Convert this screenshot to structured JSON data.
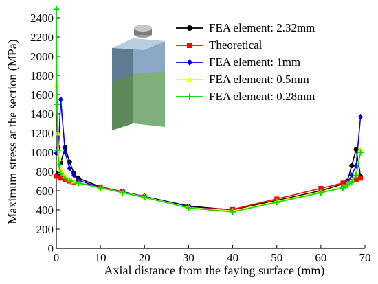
{
  "chart_data": {
    "type": "line",
    "title": "",
    "xlabel": "Axial distance from the faying surface (mm)",
    "ylabel": "Maximum stress at the section (MPa)",
    "xlim": [
      0,
      70
    ],
    "ylim": [
      0,
      2500
    ],
    "xticks": [
      0,
      10,
      20,
      30,
      40,
      50,
      60,
      70
    ],
    "yticks": [
      0,
      200,
      400,
      600,
      800,
      1000,
      1200,
      1400,
      1600,
      1800,
      2000,
      2200,
      2400
    ],
    "grid": false,
    "legend_position": "top-right",
    "series": [
      {
        "name": "FEA element: 2.32mm",
        "color": "#000000",
        "marker": "circle",
        "x": [
          0,
          0.5,
          1,
          2,
          3,
          4,
          5,
          10,
          15,
          20,
          30,
          40,
          50,
          60,
          65,
          66,
          67,
          68,
          69
        ],
        "y": [
          760,
          780,
          890,
          1050,
          900,
          780,
          730,
          640,
          590,
          540,
          440,
          400,
          500,
          600,
          670,
          700,
          860,
          1030,
          750
        ]
      },
      {
        "name": "Theoretical",
        "color": "#ff0000",
        "marker": "square",
        "x": [
          0,
          1,
          2,
          3,
          4,
          5,
          10,
          15,
          20,
          30,
          40,
          50,
          60,
          65,
          66,
          67,
          68,
          69
        ],
        "y": [
          750,
          730,
          715,
          700,
          690,
          680,
          640,
          590,
          535,
          425,
          405,
          515,
          625,
          680,
          690,
          705,
          715,
          730
        ]
      },
      {
        "name": "FEA element: 1mm",
        "color": "#0000ff",
        "marker": "diamond",
        "x": [
          0,
          0.5,
          1,
          2,
          3,
          4,
          5,
          10,
          15,
          20,
          30,
          40,
          50,
          60,
          65,
          66,
          67,
          68,
          69
        ],
        "y": [
          990,
          1050,
          1550,
          1000,
          830,
          760,
          710,
          630,
          590,
          540,
          430,
          390,
          490,
          590,
          640,
          680,
          760,
          860,
          1370
        ]
      },
      {
        "name": "FEA element: 0.5mm",
        "color": "#ffff00",
        "marker": "triangle",
        "x": [
          0,
          0.3,
          0.6,
          1,
          2,
          3,
          4,
          5,
          10,
          15,
          20,
          30,
          40,
          50,
          60,
          65,
          66,
          67,
          68,
          69
        ],
        "y": [
          1700,
          1200,
          930,
          820,
          760,
          720,
          700,
          680,
          630,
          585,
          535,
          425,
          390,
          490,
          590,
          640,
          670,
          710,
          780,
          1030
        ]
      },
      {
        "name": "FEA element: 0.28mm",
        "color": "#00dd00",
        "marker": "plus",
        "x": [
          0,
          0.15,
          0.3,
          0.6,
          1,
          2,
          3,
          5,
          10,
          15,
          20,
          30,
          40,
          50,
          60,
          65,
          66,
          67,
          68,
          69
        ],
        "y": [
          2490,
          1500,
          1020,
          870,
          780,
          730,
          700,
          680,
          630,
          580,
          530,
          420,
          380,
          480,
          580,
          630,
          660,
          690,
          760,
          1000
        ]
      }
    ]
  }
}
